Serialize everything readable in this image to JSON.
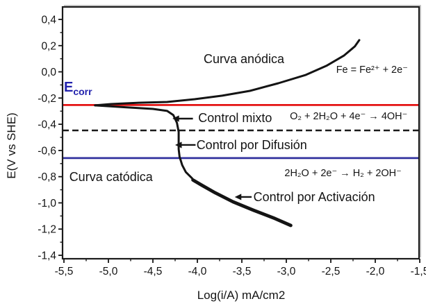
{
  "chart_data": {
    "type": "line",
    "title": "",
    "xlabel": "Log(i/A) mA/cm2",
    "ylabel": "E(V vs SHE)",
    "xlim": [
      -5.5,
      -1.5
    ],
    "ylim": [
      -1.43,
      0.5
    ],
    "grid": false,
    "legend": "none",
    "x_ticks": [
      -5.5,
      -5.0,
      -4.5,
      -4.0,
      -3.5,
      -3.0,
      -2.5,
      -2.0,
      -1.5
    ],
    "x_tick_labels": [
      "-5,5",
      "-5,0",
      "-4,5",
      "-4,0",
      "-3,5",
      "-3,0",
      "-2,5",
      "-2,0",
      "-1,5"
    ],
    "y_ticks": [
      0.4,
      0.2,
      0.0,
      -0.2,
      -0.4,
      -0.6,
      -0.8,
      -1.0,
      -1.2,
      -1.4
    ],
    "y_tick_labels": [
      "0,4",
      "0,2",
      "0,0",
      "-0,2",
      "-0,4",
      "-0,6",
      "-0,8",
      "-1,0",
      "-1,2",
      "-1,4"
    ],
    "colors": {
      "curve": "#141414",
      "ecorr_line": "#e41212",
      "diffusion_line": "#1a1a1a",
      "hydrogen_line": "#31319e",
      "ecorr_text": "#2222ad"
    },
    "reference_lines": [
      {
        "name": "ecorr-line",
        "E": -0.253,
        "color": "#e41212",
        "style": "solid",
        "width": 2.8
      },
      {
        "name": "diffusion-limit-line",
        "E": -0.447,
        "color": "#1a1a1a",
        "style": "dashed",
        "width": 2.6
      },
      {
        "name": "hydrogen-line",
        "E": -0.658,
        "color": "#31319e",
        "style": "solid",
        "width": 2.8
      }
    ],
    "series": [
      {
        "name": "anodic-branch",
        "stroke_width": 3,
        "points": [
          [
            -5.15,
            -0.256
          ],
          [
            -4.97,
            -0.246
          ],
          [
            -4.66,
            -0.236
          ],
          [
            -4.34,
            -0.23
          ],
          [
            -4.03,
            -0.209
          ],
          [
            -3.72,
            -0.182
          ],
          [
            -3.41,
            -0.145
          ],
          [
            -3.09,
            -0.087
          ],
          [
            -2.78,
            -0.023
          ],
          [
            -2.55,
            0.046
          ],
          [
            -2.35,
            0.125
          ],
          [
            -2.23,
            0.194
          ],
          [
            -2.18,
            0.242
          ]
        ]
      },
      {
        "name": "cathodic-branch",
        "stroke_width": 3,
        "points": [
          [
            -5.15,
            -0.256
          ],
          [
            -4.81,
            -0.27
          ],
          [
            -4.5,
            -0.283
          ],
          [
            -4.34,
            -0.298
          ],
          [
            -4.27,
            -0.33
          ],
          [
            -4.23,
            -0.389
          ],
          [
            -4.21,
            -0.458
          ],
          [
            -4.21,
            -0.526
          ],
          [
            -4.21,
            -0.59
          ],
          [
            -4.2,
            -0.648
          ],
          [
            -4.17,
            -0.712
          ],
          [
            -4.13,
            -0.765
          ],
          [
            -4.06,
            -0.812
          ],
          [
            -4.03,
            -0.838
          ]
        ]
      },
      {
        "name": "cathodic-tafel-segment",
        "stroke_width": 4.8,
        "points": [
          [
            -4.05,
            -0.825
          ],
          [
            -3.95,
            -0.865
          ],
          [
            -3.8,
            -0.923
          ],
          [
            -3.6,
            -0.992
          ],
          [
            -3.37,
            -1.056
          ],
          [
            -3.13,
            -1.119
          ],
          [
            -2.95,
            -1.172
          ]
        ]
      }
    ],
    "annotations": [
      {
        "name": "ecorr-label",
        "x": -5.5,
        "y": -0.118,
        "text_main": "E",
        "text_sub": "corr"
      },
      {
        "name": "anodic-curve-label",
        "x": -3.93,
        "y": 0.098,
        "text": "Curva anódica"
      },
      {
        "name": "iron-oxidation-reaction",
        "x": -2.44,
        "y": 0.014,
        "text": "Fe = Fe²⁺ + 2e⁻"
      },
      {
        "name": "mixed-control-label",
        "x": -3.99,
        "y": -0.352,
        "text": "Control mixto"
      },
      {
        "name": "oxygen-reduction-reaction",
        "x": -2.96,
        "y": -0.341,
        "text": "O₂ + 2H₂O  +  4e⁻ → 4OH⁻"
      },
      {
        "name": "diffusion-control-label",
        "x": -4.01,
        "y": -0.558,
        "text": "Control por Difusión"
      },
      {
        "name": "water-reduction-reaction",
        "x": -3.02,
        "y": -0.775,
        "text": "2H₂O  +  2e⁻ → H₂ + 2OH⁻"
      },
      {
        "name": "cathodic-curve-label",
        "x": -5.44,
        "y": -0.802,
        "text": "Curva catódica"
      },
      {
        "name": "activation-control-label",
        "x": -3.37,
        "y": -0.955,
        "text": "Control por Activación"
      }
    ],
    "arrows": [
      {
        "name": "mixed-control-arrow",
        "from": [
          -4.05,
          -0.357
        ],
        "to": [
          -4.28,
          -0.357
        ]
      },
      {
        "name": "diffusion-control-arrow",
        "from": [
          -4.02,
          -0.558
        ],
        "to": [
          -4.25,
          -0.558
        ]
      },
      {
        "name": "activation-control-arrow",
        "from": [
          -3.39,
          -0.955
        ],
        "to": [
          -3.58,
          -0.955
        ]
      }
    ]
  }
}
